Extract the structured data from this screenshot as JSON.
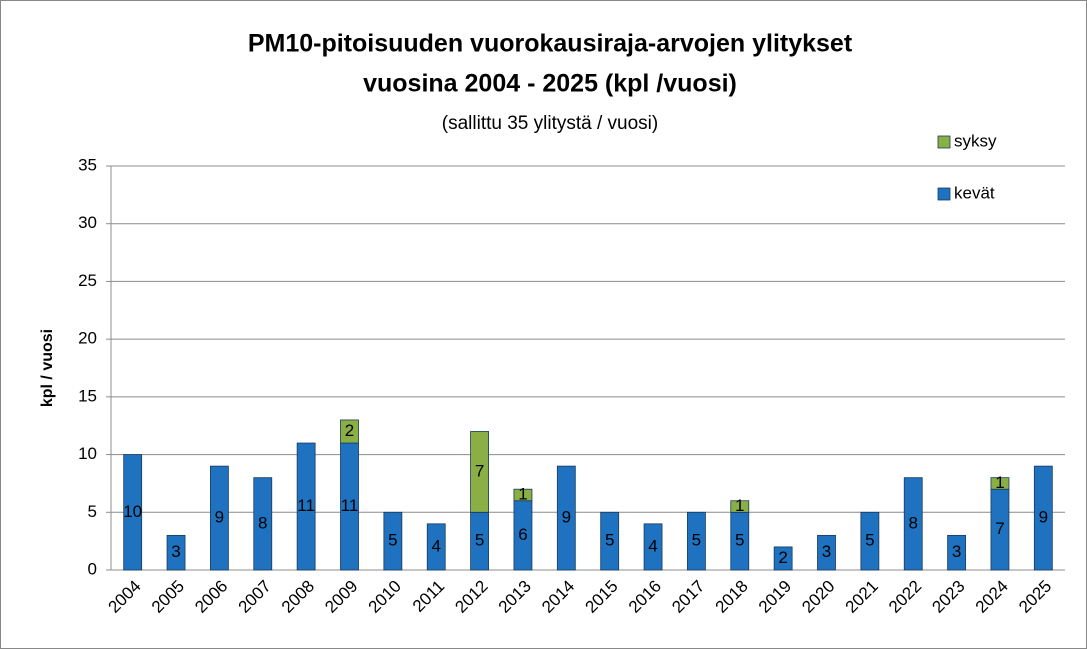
{
  "chart_data": {
    "type": "stacked-bar",
    "title": [
      "PM10-pitoisuuden vuorokausiraja-arvojen ylitykset",
      "vuosina 2004 - 2025 (kpl /vuosi)"
    ],
    "subtitle": "(sallittu 35 ylitystä / vuosi)",
    "y_label": "kpl / vuosi",
    "categories": [
      "2004",
      "2005",
      "2006",
      "2007",
      "2008",
      "2009",
      "2010",
      "2011",
      "2012",
      "2013",
      "2014",
      "2015",
      "2016",
      "2017",
      "2018",
      "2019",
      "2020",
      "2021",
      "2022",
      "2023",
      "2024",
      "2025"
    ],
    "series": [
      {
        "name": "kevät",
        "color": "#1f72c0",
        "values": [
          10,
          3,
          9,
          8,
          11,
          11,
          5,
          4,
          5,
          6,
          9,
          5,
          4,
          5,
          5,
          2,
          3,
          5,
          8,
          3,
          7,
          9
        ]
      },
      {
        "name": "syksy",
        "color": "#8aaf45",
        "values": [
          null,
          null,
          null,
          null,
          null,
          2,
          null,
          null,
          7,
          1,
          null,
          null,
          null,
          null,
          1,
          null,
          null,
          null,
          null,
          null,
          1,
          null
        ]
      }
    ],
    "ylim": [
      0,
      35
    ],
    "yticks": [
      0,
      5,
      10,
      15,
      20,
      25,
      30,
      35
    ],
    "grid": true,
    "legend": "top-right"
  }
}
